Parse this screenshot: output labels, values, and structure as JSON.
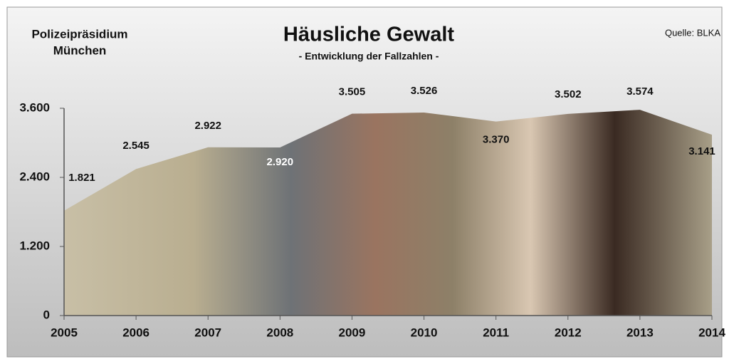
{
  "chart_data": {
    "type": "area",
    "title": "Häusliche Gewalt",
    "subtitle": "- Entwicklung der Fallzahlen -",
    "organization": [
      "Polizeipräsidium",
      "München"
    ],
    "source": "Quelle: BLKA",
    "categories": [
      "2005",
      "2006",
      "2007",
      "2008",
      "2009",
      "2010",
      "2011",
      "2012",
      "2013",
      "2014"
    ],
    "values": [
      1821,
      2545,
      2922,
      2920,
      3505,
      3526,
      3370,
      3502,
      3574,
      3141
    ],
    "value_labels": [
      "1.821",
      "2.545",
      "2.922",
      "2.920",
      "3.505",
      "3.526",
      "3.370",
      "3.502",
      "3.574",
      "3.141"
    ],
    "ylim": [
      0,
      3600
    ],
    "yticks": [
      0,
      {
        "value": 1200,
        "label": "1.200"
      },
      {
        "value": 2400,
        "label": "2.400"
      },
      {
        "value": 3600,
        "label": "3.600"
      }
    ],
    "grid": false
  }
}
